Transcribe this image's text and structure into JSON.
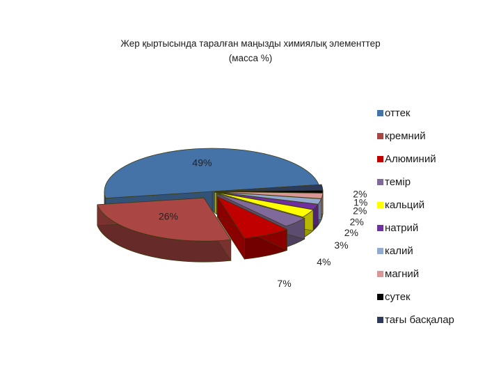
{
  "chart_data": {
    "type": "pie",
    "title": "Жер қыртысында таралған маңызды химиялық элементтер",
    "subtitle": "(масса %)",
    "categories": [
      "оттек",
      "кремний",
      "Алюминий",
      "темір",
      "кальций",
      "натрий",
      "калий",
      "магний",
      "сутек",
      "тағы басқалар"
    ],
    "values": [
      49,
      26,
      7,
      4,
      3,
      2,
      2,
      2,
      1,
      2
    ],
    "data_labels": [
      "49%",
      "26%",
      "7%",
      "4%",
      "3%",
      "2%",
      "2%",
      "2%",
      "1%",
      "2%"
    ],
    "colors": [
      "#4572A7",
      "#AA4643",
      "#C00000",
      "#80699B",
      "#FFFF00",
      "#7030A0",
      "#93A9CF",
      "#D99694",
      "#000000",
      "#2C3A5C"
    ],
    "legend_position": "right",
    "three_d": true
  }
}
